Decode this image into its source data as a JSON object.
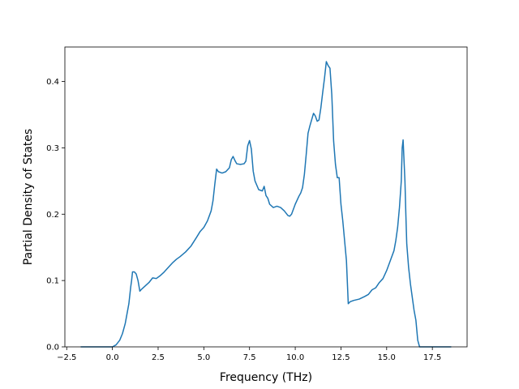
{
  "chart_data": {
    "type": "line",
    "title": "",
    "xlabel": "Frequency (THz)",
    "ylabel": "Partial Density of States",
    "xlim": [
      -2.6,
      19.4
    ],
    "ylim": [
      0.0,
      0.452
    ],
    "grid": false,
    "line_color": "#1f77b4",
    "xticks": [
      -2.5,
      0.0,
      2.5,
      5.0,
      7.5,
      10.0,
      12.5,
      15.0,
      17.5
    ],
    "xtick_labels": [
      "−2.5",
      "0.0",
      "2.5",
      "5.0",
      "7.5",
      "10.0",
      "12.5",
      "15.0",
      "17.5"
    ],
    "yticks": [
      0.0,
      0.1,
      0.2,
      0.3,
      0.4
    ],
    "ytick_labels": [
      "0.0",
      "0.1",
      "0.2",
      "0.3",
      "0.4"
    ],
    "series": [
      {
        "x": [
          -1.7,
          -1.0,
          -0.5,
          0.0,
          0.2,
          0.4,
          0.55,
          0.7,
          0.8,
          0.9,
          1.0,
          1.05,
          1.1,
          1.2,
          1.3,
          1.4,
          1.5,
          1.6,
          1.8,
          2.0,
          2.2,
          2.4,
          2.6,
          2.8,
          3.0,
          3.3,
          3.5,
          3.7,
          4.0,
          4.3,
          4.6,
          4.8,
          5.0,
          5.2,
          5.4,
          5.5,
          5.6,
          5.7,
          5.8,
          6.0,
          6.2,
          6.4,
          6.5,
          6.6,
          6.7,
          6.8,
          7.0,
          7.2,
          7.3,
          7.4,
          7.5,
          7.6,
          7.7,
          7.8,
          8.0,
          8.2,
          8.3,
          8.4,
          8.5,
          8.6,
          8.8,
          9.0,
          9.2,
          9.4,
          9.6,
          9.7,
          9.8,
          10.0,
          10.2,
          10.3,
          10.4,
          10.5,
          10.6,
          10.7,
          10.8,
          11.0,
          11.1,
          11.2,
          11.3,
          11.4,
          11.5,
          11.6,
          11.7,
          11.8,
          11.9,
          12.0,
          12.1,
          12.2,
          12.3,
          12.4,
          12.5,
          12.6,
          12.8,
          12.9,
          13.0,
          13.2,
          13.5,
          13.8,
          14.0,
          14.2,
          14.4,
          14.6,
          14.8,
          15.0,
          15.2,
          15.4,
          15.5,
          15.6,
          15.7,
          15.8,
          15.85,
          15.9,
          16.0,
          16.05,
          16.1,
          16.2,
          16.3,
          16.4,
          16.5,
          16.6,
          16.7,
          16.8,
          17.0,
          17.5,
          18.0,
          18.5
        ],
        "y": [
          0.0,
          0.0,
          0.0,
          0.0,
          0.003,
          0.01,
          0.02,
          0.035,
          0.05,
          0.065,
          0.09,
          0.1,
          0.113,
          0.113,
          0.11,
          0.1,
          0.084,
          0.087,
          0.092,
          0.097,
          0.104,
          0.103,
          0.107,
          0.112,
          0.118,
          0.127,
          0.132,
          0.136,
          0.143,
          0.152,
          0.165,
          0.174,
          0.18,
          0.19,
          0.205,
          0.22,
          0.245,
          0.268,
          0.264,
          0.262,
          0.264,
          0.27,
          0.282,
          0.287,
          0.281,
          0.276,
          0.275,
          0.276,
          0.28,
          0.303,
          0.311,
          0.298,
          0.265,
          0.25,
          0.237,
          0.235,
          0.242,
          0.228,
          0.224,
          0.215,
          0.21,
          0.212,
          0.21,
          0.205,
          0.198,
          0.197,
          0.2,
          0.215,
          0.227,
          0.232,
          0.24,
          0.26,
          0.29,
          0.322,
          0.333,
          0.352,
          0.348,
          0.34,
          0.342,
          0.36,
          0.383,
          0.405,
          0.43,
          0.424,
          0.42,
          0.38,
          0.31,
          0.275,
          0.255,
          0.255,
          0.215,
          0.19,
          0.13,
          0.065,
          0.068,
          0.07,
          0.072,
          0.076,
          0.079,
          0.086,
          0.089,
          0.097,
          0.103,
          0.115,
          0.13,
          0.145,
          0.16,
          0.18,
          0.21,
          0.25,
          0.3,
          0.312,
          0.25,
          0.2,
          0.155,
          0.12,
          0.095,
          0.075,
          0.055,
          0.04,
          0.01,
          0.0,
          0.0,
          0.0,
          0.0,
          0.0
        ]
      }
    ]
  }
}
